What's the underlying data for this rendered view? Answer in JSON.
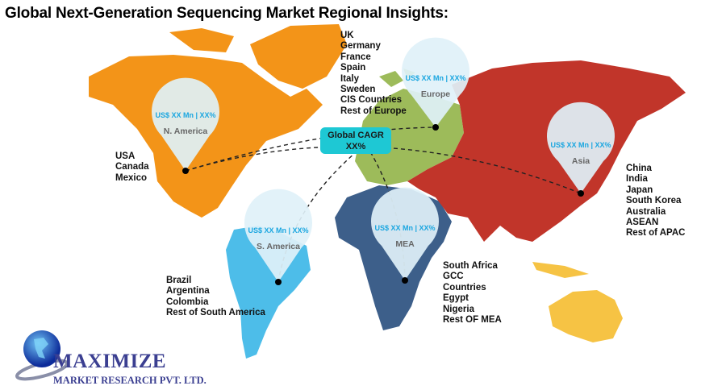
{
  "title": "Global Next-Generation Sequencing Market Regional Insights:",
  "global_cagr": {
    "label": "Global CAGR",
    "value": "XX%"
  },
  "regions": {
    "north_america": {
      "name": "N. America",
      "value": "US$ XX Mn | XX%",
      "color": "#f39418",
      "countries": [
        "USA",
        "Canada",
        "Mexico"
      ]
    },
    "europe": {
      "name": "Europe",
      "value": "US$ XX Mn | XX%",
      "color": "#9dbb5a",
      "countries": [
        "UK",
        "Germany",
        "France",
        "Spain",
        "Italy",
        "Sweden",
        "CIS Countries",
        "Rest of Europe"
      ]
    },
    "asia": {
      "name": "Asia",
      "value": "US$ XX Mn | XX%",
      "color": "#c1352a",
      "countries": [
        "China",
        "India",
        "Japan",
        "South Korea",
        "Australia",
        "ASEAN",
        "Rest of APAC"
      ]
    },
    "south_america": {
      "name": "S. America",
      "value": "US$ XX Mn | XX%",
      "color": "#4dbde9",
      "countries": [
        "Brazil",
        "Argentina",
        "Colombia",
        "Rest of South America"
      ]
    },
    "mea": {
      "name": "MEA",
      "value": "US$ XX Mn | XX%",
      "color": "#3d5f8a",
      "countries": [
        "South Africa",
        "GCC",
        "Countries",
        "Egypt",
        "Nigeria",
        "Rest OF MEA"
      ]
    }
  },
  "australia_color": "#f6c344",
  "logo": {
    "name": "MAXIMIZE",
    "subtitle": "MARKET RESEARCH PVT. LTD."
  }
}
